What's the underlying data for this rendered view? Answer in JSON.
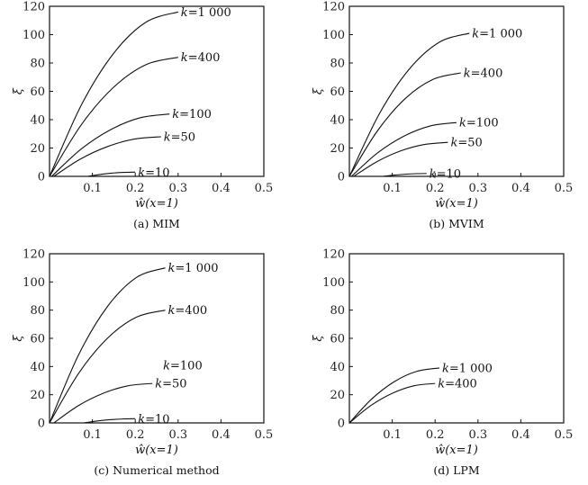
{
  "chart_data": [
    {
      "type": "line",
      "caption": "(a) MIM",
      "xlabel": "ŵ(x=1)",
      "ylabel": "ξ",
      "xlim": [
        0,
        0.5
      ],
      "ylim": [
        0,
        120
      ],
      "xticks": [
        "0.1",
        "0.2",
        "0.3",
        "0.4",
        "0.5"
      ],
      "yticks": [
        "0",
        "20",
        "40",
        "60",
        "80",
        "100",
        "120"
      ],
      "series": [
        {
          "name": "k=1 000",
          "x": [
            0,
            0.075,
            0.15,
            0.225,
            0.3
          ],
          "y": [
            0,
            50.8,
            87,
            108.8,
            116
          ]
        },
        {
          "name": "k=400",
          "x": [
            0,
            0.075,
            0.15,
            0.225,
            0.3
          ],
          "y": [
            0,
            36.8,
            63,
            78.8,
            84
          ]
        },
        {
          "name": "k=100",
          "x": [
            0.005,
            0.074,
            0.143,
            0.211,
            0.28
          ],
          "y": [
            0,
            19.3,
            33,
            41.3,
            44
          ]
        },
        {
          "name": "k=50",
          "x": [
            0.01,
            0.0725,
            0.135,
            0.1975,
            0.26
          ],
          "y": [
            0,
            12.3,
            21,
            26.3,
            28
          ]
        },
        {
          "name": "k=10",
          "x": [
            0.09,
            0.1175,
            0.145,
            0.1725,
            0.2
          ],
          "y": [
            0,
            1.3,
            2.25,
            2.8,
            3
          ]
        }
      ]
    },
    {
      "type": "line",
      "caption": "(b) MVIM",
      "xlabel": "ŵ(x=1)",
      "ylabel": "ξ",
      "xlim": [
        0,
        0.5
      ],
      "ylim": [
        0,
        120
      ],
      "xticks": [
        "0.1",
        "0.2",
        "0.3",
        "0.4",
        "0.5"
      ],
      "yticks": [
        "0",
        "20",
        "40",
        "60",
        "80",
        "100",
        "120"
      ],
      "series": [
        {
          "name": "k=1 000",
          "x": [
            0,
            0.07,
            0.14,
            0.21,
            0.28
          ],
          "y": [
            0,
            44.2,
            75.8,
            94.7,
            101
          ]
        },
        {
          "name": "k=400",
          "x": [
            0,
            0.065,
            0.13,
            0.195,
            0.26
          ],
          "y": [
            0,
            31.9,
            54.8,
            68.4,
            73
          ]
        },
        {
          "name": "k=100",
          "x": [
            0.005,
            0.066,
            0.128,
            0.189,
            0.25
          ],
          "y": [
            0,
            16.6,
            28.5,
            35.6,
            38
          ]
        },
        {
          "name": "k=50",
          "x": [
            0.01,
            0.065,
            0.12,
            0.175,
            0.23
          ],
          "y": [
            0,
            10.5,
            18,
            22.5,
            24
          ]
        },
        {
          "name": "k=10",
          "x": [
            0.08,
            0.105,
            0.13,
            0.155,
            0.18
          ],
          "y": [
            0,
            0.9,
            1.5,
            1.9,
            2
          ]
        }
      ]
    },
    {
      "type": "line",
      "caption": "(c) Numerical method",
      "xlabel": "ŵ(x=1)",
      "ylabel": "ξ",
      "xlim": [
        0,
        0.5
      ],
      "ylim": [
        0,
        120
      ],
      "xticks": [
        "0.1",
        "0.2",
        "0.3",
        "0.4",
        "0.5"
      ],
      "yticks": [
        "0",
        "20",
        "40",
        "60",
        "80",
        "100",
        "120"
      ],
      "series": [
        {
          "name": "k=1 000",
          "x": [
            0,
            0.0675,
            0.135,
            0.2025,
            0.27
          ],
          "y": [
            0,
            48.1,
            82.5,
            103.1,
            110
          ]
        },
        {
          "name": "k=400",
          "x": [
            0,
            0.0675,
            0.135,
            0.2025,
            0.27
          ],
          "y": [
            0,
            35,
            60,
            75,
            80
          ]
        },
        {
          "name": "k=100",
          "x": [],
          "y": [],
          "label_at": [
            0.265,
            41
          ]
        },
        {
          "name": "k=50",
          "x": [
            0.01,
            0.0675,
            0.125,
            0.1825,
            0.24
          ],
          "y": [
            0,
            12.3,
            21,
            26.3,
            28
          ]
        },
        {
          "name": "k=10",
          "x": [
            0.08,
            0.11,
            0.14,
            0.17,
            0.2
          ],
          "y": [
            0,
            1.3,
            2.25,
            2.8,
            3
          ]
        }
      ]
    },
    {
      "type": "line",
      "caption": "(d) LPM",
      "xlabel": "ŵ(x=1)",
      "ylabel": "ξ",
      "xlim": [
        0,
        0.5
      ],
      "ylim": [
        0,
        120
      ],
      "xticks": [
        "0.1",
        "0.2",
        "0.3",
        "0.4",
        "0.5"
      ],
      "yticks": [
        "0",
        "20",
        "40",
        "60",
        "80",
        "100",
        "120"
      ],
      "series": [
        {
          "name": "k=1 000",
          "x": [
            0,
            0.0525,
            0.105,
            0.1575,
            0.21
          ],
          "y": [
            0,
            17.1,
            29.3,
            36.6,
            39
          ]
        },
        {
          "name": "k=400",
          "x": [
            0,
            0.05,
            0.1,
            0.15,
            0.2
          ],
          "y": [
            0,
            12.3,
            21,
            26.3,
            28
          ]
        }
      ]
    }
  ]
}
